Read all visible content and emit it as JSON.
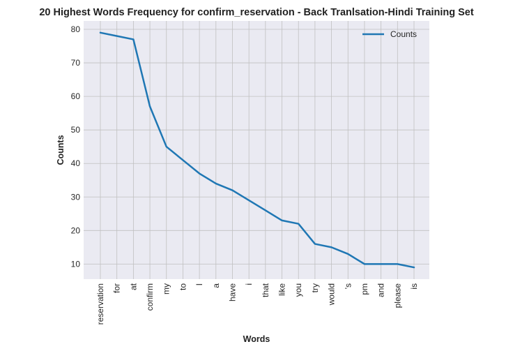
{
  "chart_data": {
    "type": "line",
    "title": "20 Highest Words Frequency for confirm_reservation - Back Tranlsation-Hindi Training Set",
    "xlabel": "Words",
    "ylabel": "Counts",
    "categories": [
      "reservation",
      "for",
      "at",
      "confirm",
      "my",
      "to",
      "I",
      "a",
      "have",
      "i",
      "that",
      "like",
      "you",
      "try",
      "would",
      "'s",
      "pm",
      "and",
      "please",
      "is"
    ],
    "series": [
      {
        "name": "Counts",
        "values": [
          79,
          78,
          77,
          57,
          45,
          41,
          37,
          34,
          32,
          29,
          26,
          23,
          22,
          16,
          15,
          13,
          10,
          10,
          10,
          9
        ]
      }
    ],
    "ylim": [
      5.5,
      82.5
    ],
    "yticks": [
      10,
      20,
      30,
      40,
      50,
      60,
      70,
      80
    ],
    "grid": true,
    "legend_position": "top-right",
    "colors": {
      "line": "#1f77b4",
      "plot_bg": "#eaeaf2",
      "grid": "#c0c0c0"
    }
  }
}
